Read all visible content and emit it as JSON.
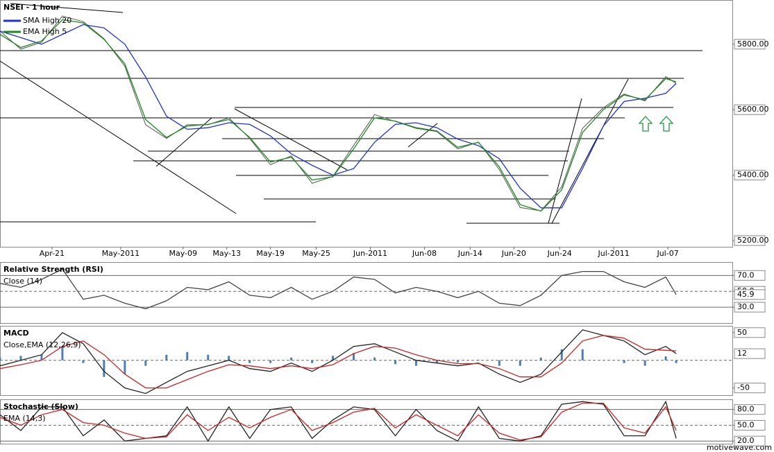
{
  "chart_data": [
    {
      "type": "line",
      "title": "NSEI - 1 hour",
      "color": "#555555",
      "x": [
        0,
        10,
        20,
        30,
        40,
        50,
        60,
        70,
        80,
        90,
        100,
        110,
        120,
        130,
        140,
        150,
        160,
        170,
        180,
        190,
        200,
        210,
        220,
        230,
        240,
        250,
        260,
        270,
        280,
        290,
        300,
        310,
        320,
        325
      ],
      "values": [
        5840,
        5785,
        5806,
        5886,
        5869,
        5817,
        5733,
        5554,
        5512,
        5554,
        5554,
        5575,
        5512,
        5432,
        5459,
        5375,
        5396,
        5491,
        5585,
        5564,
        5543,
        5533,
        5480,
        5501,
        5417,
        5301,
        5291,
        5364,
        5543,
        5606,
        5648,
        5627,
        5701,
        5680
      ],
      "series": [
        {
          "name": "SMA High 20",
          "color": "#1f2fd8",
          "values": [
            5840,
            5820,
            5800,
            5830,
            5860,
            5850,
            5800,
            5700,
            5580,
            5540,
            5545,
            5560,
            5555,
            5520,
            5465,
            5430,
            5400,
            5420,
            5500,
            5555,
            5560,
            5545,
            5510,
            5490,
            5450,
            5360,
            5300,
            5300,
            5420,
            5550,
            5625,
            5635,
            5650,
            5680
          ]
        },
        {
          "name": "EMA High 5",
          "color": "#1a8a1a",
          "values": [
            5830,
            5790,
            5810,
            5875,
            5865,
            5815,
            5740,
            5570,
            5515,
            5550,
            5555,
            5570,
            5515,
            5440,
            5455,
            5385,
            5395,
            5480,
            5575,
            5565,
            5545,
            5535,
            5485,
            5500,
            5425,
            5310,
            5290,
            5355,
            5530,
            5600,
            5645,
            5630,
            5695,
            5685
          ]
        }
      ],
      "xlim": [
        0,
        352
      ],
      "xticks": [
        {
          "value": 25,
          "label": "Apr-21"
        },
        {
          "value": 58,
          "label": "May-2011"
        },
        {
          "value": 88,
          "label": "May-09"
        },
        {
          "value": 109,
          "label": "May-13"
        },
        {
          "value": 130,
          "label": "May-19"
        },
        {
          "value": 152,
          "label": "May-25"
        },
        {
          "value": 178,
          "label": "Jun-2011"
        },
        {
          "value": 204,
          "label": "Jun-08"
        },
        {
          "value": 226,
          "label": "Jun-14"
        },
        {
          "value": 247,
          "label": "Jun-20"
        },
        {
          "value": 269,
          "label": "Jun-24"
        },
        {
          "value": 295,
          "label": "Jul-2011"
        },
        {
          "value": 321,
          "label": "Jul-07"
        }
      ],
      "ylim": [
        5181,
        5933
      ],
      "yticks": [
        {
          "value": 5200,
          "label": "5200.00"
        },
        {
          "value": 5400,
          "label": "5400.00"
        },
        {
          "value": 5600,
          "label": "5600.00"
        },
        {
          "value": 5800,
          "label": "5800.00"
        }
      ],
      "grid": false,
      "watermark": "motivewave.com"
    },
    {
      "type": "line",
      "title": "Relative Strength (RSI)",
      "subtitle": "Close (14)",
      "x": [
        0,
        10,
        20,
        30,
        40,
        50,
        60,
        70,
        80,
        90,
        100,
        110,
        120,
        130,
        140,
        150,
        160,
        170,
        180,
        190,
        200,
        210,
        220,
        230,
        240,
        250,
        260,
        270,
        280,
        290,
        300,
        310,
        320,
        325
      ],
      "series": [
        {
          "name": "RSI",
          "color": "#444444",
          "values": [
            60,
            55,
            65,
            78,
            40,
            45,
            35,
            28,
            38,
            55,
            52,
            62,
            45,
            42,
            55,
            40,
            50,
            68,
            65,
            48,
            55,
            50,
            42,
            50,
            35,
            32,
            45,
            70,
            75,
            75,
            62,
            55,
            68,
            45.9
          ]
        }
      ],
      "xlim": [
        0,
        352
      ],
      "ylim": [
        10,
        86
      ],
      "yticks": [
        {
          "value": 30,
          "label": "30.0"
        },
        {
          "value": 50,
          "label": "50.0"
        },
        {
          "value": 70,
          "label": "70.0"
        }
      ],
      "grid": true,
      "current_values": [
        45.9
      ]
    },
    {
      "type": "line",
      "title": "MACD",
      "subtitle": "Close,EMA (12,26,9)",
      "x": [
        0,
        10,
        20,
        30,
        40,
        50,
        60,
        70,
        80,
        90,
        100,
        110,
        120,
        130,
        140,
        150,
        160,
        170,
        180,
        190,
        200,
        210,
        220,
        230,
        240,
        250,
        260,
        270,
        280,
        290,
        300,
        310,
        320,
        325
      ],
      "series": [
        {
          "name": "Histogram",
          "style": "histogram",
          "color": "#4a7fb0",
          "values": [
            5,
            8,
            10,
            25,
            -5,
            -30,
            -25,
            -10,
            10,
            15,
            10,
            8,
            -5,
            -5,
            5,
            -5,
            8,
            13,
            5,
            -7,
            -10,
            -5,
            -4,
            1,
            -10,
            -10,
            5,
            20,
            20,
            0,
            -5,
            -10,
            7,
            -5
          ]
        },
        {
          "name": "MACD",
          "color": "#222222",
          "values": [
            -10,
            0,
            10,
            50,
            30,
            -20,
            -50,
            -60,
            -40,
            -20,
            -10,
            0,
            -15,
            -20,
            -5,
            -20,
            0,
            25,
            30,
            15,
            0,
            -5,
            -10,
            -5,
            -25,
            -40,
            -25,
            15,
            55,
            45,
            35,
            10,
            25,
            12
          ]
        },
        {
          "name": "Signal",
          "color": "#cc2222",
          "values": [
            -15,
            -8,
            0,
            25,
            35,
            10,
            -25,
            -50,
            -50,
            -35,
            -20,
            -8,
            -10,
            -15,
            -10,
            -15,
            -8,
            12,
            25,
            22,
            10,
            0,
            -6,
            -6,
            -15,
            -30,
            -30,
            -5,
            35,
            45,
            40,
            20,
            18,
            17
          ]
        }
      ],
      "xlim": [
        0,
        352
      ],
      "ylim": [
        -63,
        61
      ],
      "yticks": [
        -50,
        50
      ],
      "baseline": 0,
      "grid": false,
      "current_values": [
        12
      ]
    },
    {
      "type": "line",
      "title": "Stochastic (Slow)",
      "subtitle": "EMA (14,3)",
      "x": [
        0,
        10,
        20,
        30,
        40,
        50,
        60,
        70,
        80,
        90,
        100,
        110,
        120,
        130,
        140,
        150,
        160,
        170,
        180,
        190,
        200,
        210,
        220,
        230,
        240,
        250,
        260,
        270,
        280,
        290,
        300,
        310,
        320,
        325
      ],
      "series": [
        {
          "name": "%K",
          "color": "#222222",
          "values": [
            70,
            40,
            85,
            85,
            30,
            60,
            20,
            25,
            30,
            85,
            20,
            85,
            25,
            80,
            85,
            25,
            60,
            85,
            80,
            30,
            80,
            40,
            20,
            85,
            25,
            20,
            30,
            90,
            95,
            90,
            30,
            30,
            95,
            25
          ]
        },
        {
          "name": "%D",
          "color": "#cc2222",
          "values": [
            65,
            50,
            70,
            80,
            55,
            50,
            35,
            25,
            28,
            70,
            40,
            65,
            45,
            65,
            80,
            40,
            55,
            75,
            82,
            45,
            70,
            50,
            30,
            70,
            35,
            22,
            28,
            75,
            92,
            92,
            45,
            35,
            85,
            40
          ]
        }
      ],
      "xlim": [
        0,
        352
      ],
      "ylim": [
        15,
        98
      ],
      "yticks": [
        {
          "value": 20,
          "label": "20.0"
        },
        {
          "value": 50,
          "label": "50.0"
        },
        {
          "value": 80,
          "label": "80.0"
        }
      ],
      "grid": true
    }
  ]
}
